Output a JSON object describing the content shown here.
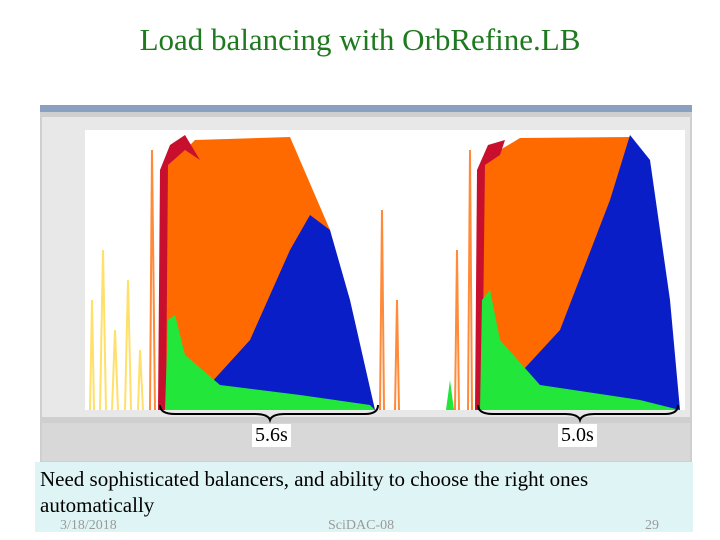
{
  "title": "Load balancing with OrbRefine.LB",
  "brace_labels": [
    "5.6s",
    "5.0s"
  ],
  "callout": "Need sophisticated balancers, and ability to choose the right ones automatically",
  "footer": {
    "date": "3/18/2018",
    "event": "SciDAC-08",
    "page": "29"
  }
}
